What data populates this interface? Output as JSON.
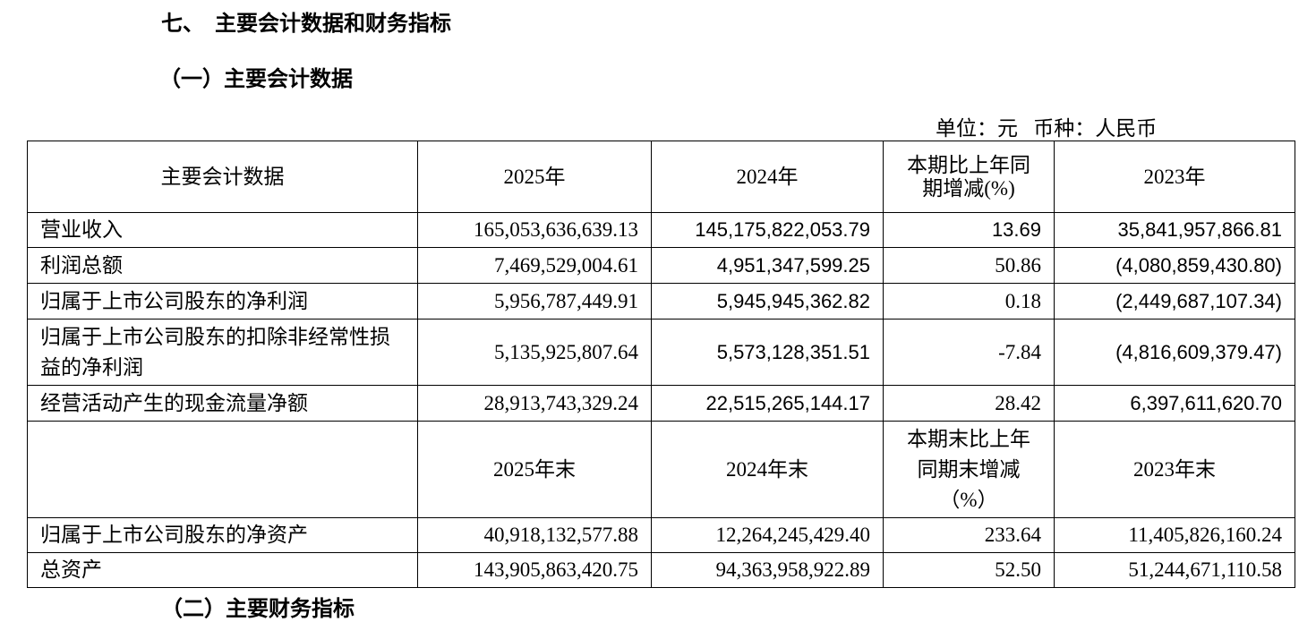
{
  "section_title": "七、  主要会计数据和财务指标",
  "subsection_title": "（一）主要会计数据",
  "unit_line": "单位：元   币种：人民币",
  "next_subsection_title": "（二）主要财务指标",
  "table": {
    "header1": [
      "主要会计数据",
      "2025年",
      "2024年",
      "本期比上年同期增减(%)",
      "2023年"
    ],
    "rows1": [
      {
        "label": "营业收入",
        "y2025": "165,053,636,639.13",
        "y2024": "145,175,822,053.79",
        "change": "13.69",
        "y2023": "35,841,957,866.81"
      },
      {
        "label": "利润总额",
        "y2025": "7,469,529,004.61",
        "y2024": "4,951,347,599.25",
        "change": "50.86",
        "y2023": "(4,080,859,430.80)"
      },
      {
        "label": "归属于上市公司股东的净利润",
        "y2025": "5,956,787,449.91",
        "y2024": "5,945,945,362.82",
        "change": "0.18",
        "y2023": "(2,449,687,107.34)"
      },
      {
        "label": "归属于上市公司股东的扣除非经常性损益的净利润",
        "y2025": "5,135,925,807.64",
        "y2024": "5,573,128,351.51",
        "change": "-7.84",
        "y2023": "(4,816,609,379.47)"
      },
      {
        "label": "经营活动产生的现金流量净额",
        "y2025": "28,913,743,329.24",
        "y2024": "22,515,265,144.17",
        "change": "28.42",
        "y2023": "6,397,611,620.70"
      }
    ],
    "header2": [
      "",
      "2025年末",
      "2024年末",
      "本期末比上年同期末增减（%）",
      "2023年末"
    ],
    "rows2": [
      {
        "label": "归属于上市公司股东的净资产",
        "y2025": "40,918,132,577.88",
        "y2024": "12,264,245,429.40",
        "change": "233.64",
        "y2023": "11,405,826,160.24"
      },
      {
        "label": "总资产",
        "y2025": "143,905,863,420.75",
        "y2024": "94,363,958,922.89",
        "change": "52.50",
        "y2023": "51,244,671,110.58"
      }
    ]
  }
}
